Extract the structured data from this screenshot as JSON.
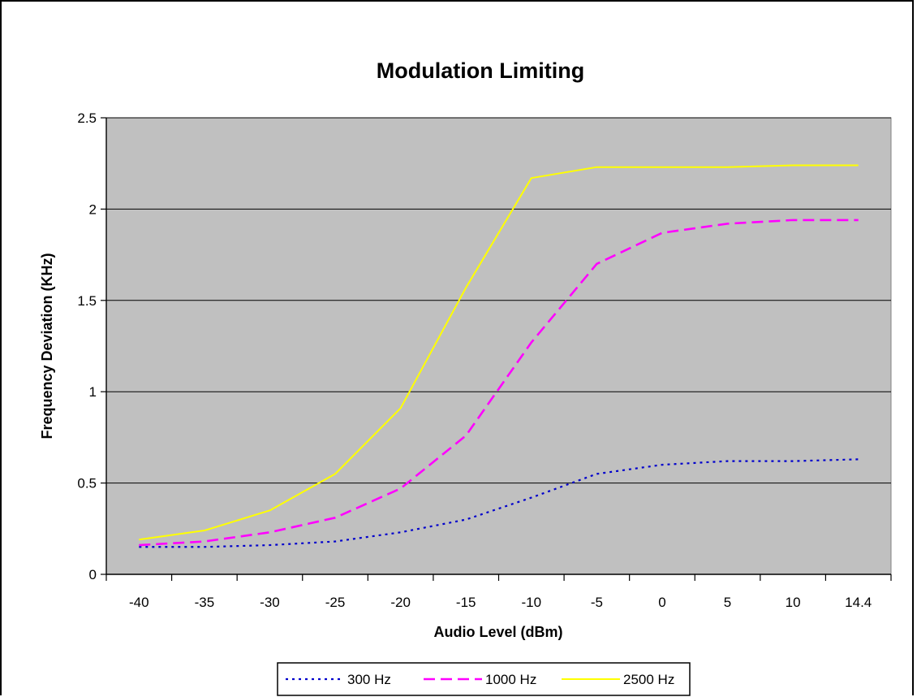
{
  "chart_data": {
    "type": "line",
    "title": "Modulation Limiting",
    "xlabel": "Audio Level (dBm)",
    "ylabel": "Frequency Deviation (KHz)",
    "categories": [
      "-40",
      "-35",
      "-30",
      "-25",
      "-20",
      "-15",
      "-10",
      "-5",
      "0",
      "5",
      "10",
      "14.4"
    ],
    "ylim": [
      0,
      2.5
    ],
    "yticks": [
      "0",
      "0.5",
      "1",
      "1.5",
      "2",
      "2.5"
    ],
    "grid": "horizontal",
    "legend": "bottom",
    "plot_background": "#C0C0C0",
    "series": [
      {
        "name": "300 Hz",
        "color": "#0000CC",
        "style": "dotted",
        "values": [
          0.15,
          0.15,
          0.16,
          0.18,
          0.23,
          0.3,
          0.42,
          0.55,
          0.6,
          0.62,
          0.62,
          0.63
        ]
      },
      {
        "name": "1000 Hz",
        "color": "#FF00FF",
        "style": "dashed",
        "values": [
          0.16,
          0.18,
          0.23,
          0.31,
          0.47,
          0.76,
          1.27,
          1.7,
          1.87,
          1.92,
          1.94,
          1.94
        ]
      },
      {
        "name": "2500 Hz",
        "color": "#FFFF00",
        "style": "solid",
        "values": [
          0.19,
          0.24,
          0.35,
          0.55,
          0.91,
          1.57,
          2.17,
          2.23,
          2.23,
          2.23,
          2.24,
          2.24
        ]
      }
    ]
  }
}
